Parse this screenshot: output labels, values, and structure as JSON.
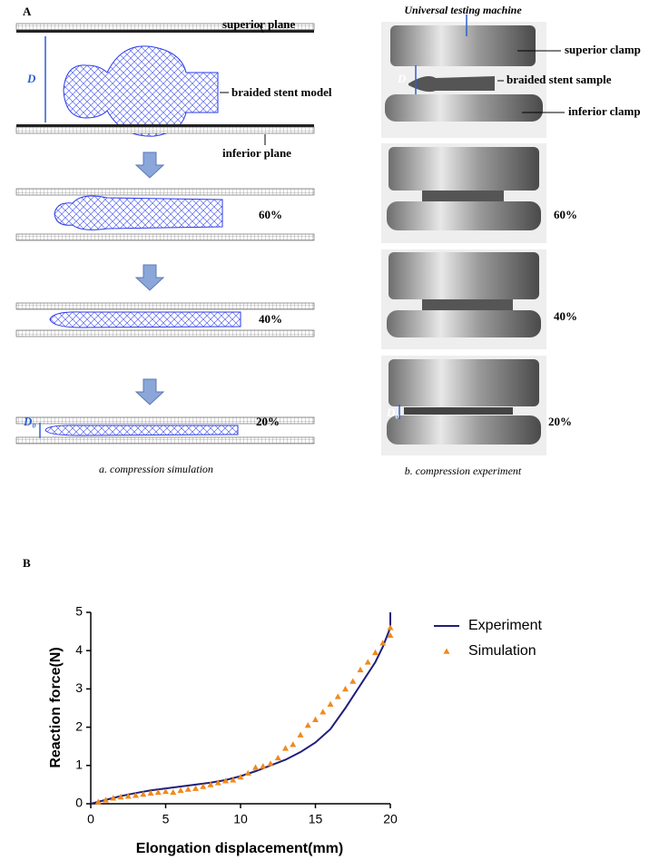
{
  "panel_a": {
    "label": "A",
    "simulation": {
      "superior_plane": "superior plane",
      "model": "braided stent model",
      "inferior_plane": "inferior plane",
      "d": "D",
      "stage_60": "60%",
      "stage_40": "40%",
      "stage_20": "20%",
      "d0": "D₀",
      "caption": "a. compression simulation"
    },
    "experiment": {
      "machine": "Universal testing machine",
      "superior_clamp": "superior clamp",
      "sample": "braided stent sample",
      "inferior_clamp": "inferior clamp",
      "d": "D",
      "stage_60": "60%",
      "stage_40": "40%",
      "stage_20": "20%",
      "d0": "D₀",
      "caption": "b. compression experiment"
    }
  },
  "chart_data": {
    "type": "line",
    "panel_label": "B",
    "x_label": "Elongation displacement(mm)",
    "y_label": "Reaction force(N)",
    "xlim": [
      0,
      20
    ],
    "xticks": [
      0,
      5,
      10,
      15,
      20
    ],
    "ylim": [
      0,
      5
    ],
    "yticks": [
      0,
      1,
      2,
      3,
      4,
      5
    ],
    "legend": "upper right",
    "series": [
      {
        "name": "Experiment",
        "color": "#1f1f7a",
        "kind": "line",
        "x": [
          0,
          1,
          2,
          3,
          4,
          5,
          6,
          7,
          8,
          9,
          10,
          11,
          12,
          13,
          14,
          15,
          16,
          17,
          18,
          19,
          19.5,
          20,
          20
        ],
        "values": [
          0,
          0.1,
          0.2,
          0.28,
          0.35,
          0.4,
          0.45,
          0.5,
          0.55,
          0.62,
          0.72,
          0.85,
          1.0,
          1.15,
          1.35,
          1.6,
          1.95,
          2.5,
          3.1,
          3.7,
          4.1,
          4.6,
          5.0
        ]
      },
      {
        "name": "Simulation",
        "color": "#f08a1c",
        "kind": "triangle",
        "x": [
          0.5,
          1,
          1.5,
          2,
          2.5,
          3,
          3.5,
          4,
          4.5,
          5,
          5.5,
          6,
          6.5,
          7,
          7.5,
          8,
          8.5,
          9,
          9.5,
          10,
          10.5,
          11,
          11.5,
          12,
          12.5,
          13,
          13.5,
          14,
          14.5,
          15,
          15.5,
          16,
          16.5,
          17,
          17.5,
          18,
          18.5,
          19,
          19.5,
          20,
          20
        ],
        "values": [
          0.05,
          0.1,
          0.15,
          0.18,
          0.2,
          0.22,
          0.25,
          0.28,
          0.3,
          0.32,
          0.3,
          0.35,
          0.38,
          0.4,
          0.45,
          0.5,
          0.55,
          0.6,
          0.62,
          0.7,
          0.8,
          0.95,
          0.98,
          1.05,
          1.2,
          1.45,
          1.55,
          1.8,
          2.05,
          2.2,
          2.4,
          2.6,
          2.8,
          3.0,
          3.2,
          3.5,
          3.7,
          3.95,
          4.2,
          4.4,
          4.6
        ]
      }
    ]
  }
}
